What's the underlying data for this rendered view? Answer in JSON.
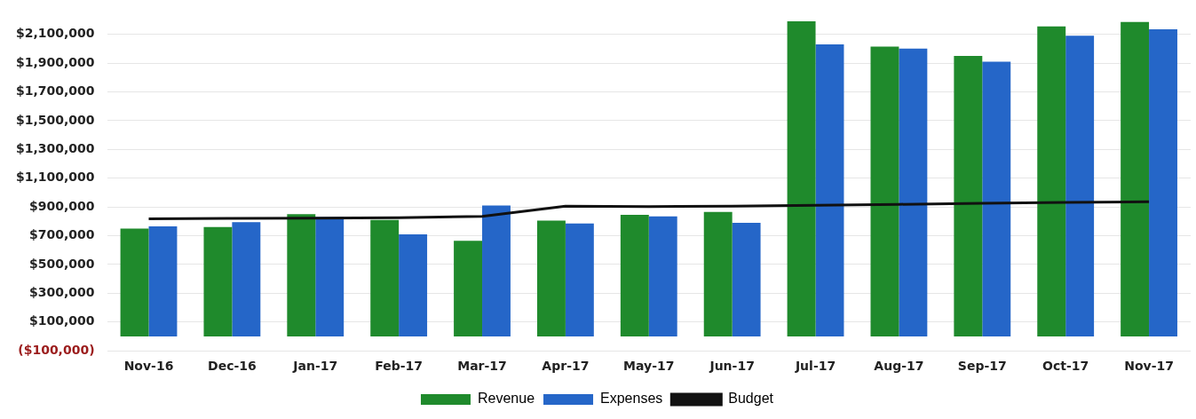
{
  "chart_data": {
    "type": "bar",
    "categories": [
      "Nov-16",
      "Dec-16",
      "Jan-17",
      "Feb-17",
      "Mar-17",
      "Apr-17",
      "May-17",
      "Jun-17",
      "Jul-17",
      "Aug-17",
      "Sep-17",
      "Oct-17",
      "Nov-17"
    ],
    "series": [
      {
        "name": "Revenue",
        "color": "#1f8a2c",
        "values": [
          750000,
          760000,
          850000,
          810000,
          665000,
          805000,
          845000,
          865000,
          2190000,
          2015000,
          1950000,
          2155000,
          2185000
        ]
      },
      {
        "name": "Expenses",
        "color": "#2566c8",
        "values": [
          765000,
          795000,
          830000,
          710000,
          910000,
          785000,
          835000,
          790000,
          2030000,
          2000000,
          1910000,
          2090000,
          2135000
        ]
      },
      {
        "name": "Budget",
        "type": "line",
        "color": "#111111",
        "values": [
          818000,
          820000,
          822000,
          825000,
          835000,
          905000,
          903000,
          905000,
          912000,
          918000,
          926000,
          931000,
          936000
        ]
      }
    ],
    "ylim": [
      -100000,
      2200000
    ],
    "yticks": [
      {
        "value": -100000,
        "label": "($100,000)"
      },
      {
        "value": 100000,
        "label": "$100,000"
      },
      {
        "value": 300000,
        "label": "$300,000"
      },
      {
        "value": 500000,
        "label": "$500,000"
      },
      {
        "value": 700000,
        "label": "$700,000"
      },
      {
        "value": 900000,
        "label": "$900,000"
      },
      {
        "value": 1100000,
        "label": "$1,100,000"
      },
      {
        "value": 1300000,
        "label": "$1,300,000"
      },
      {
        "value": 1500000,
        "label": "$1,500,000"
      },
      {
        "value": 1700000,
        "label": "$1,700,000"
      },
      {
        "value": 1900000,
        "label": "$1,900,000"
      },
      {
        "value": 2100000,
        "label": "$2,100,000"
      }
    ],
    "grid": "y",
    "legend": "bottom",
    "marker": "none",
    "line_style": "solid"
  }
}
